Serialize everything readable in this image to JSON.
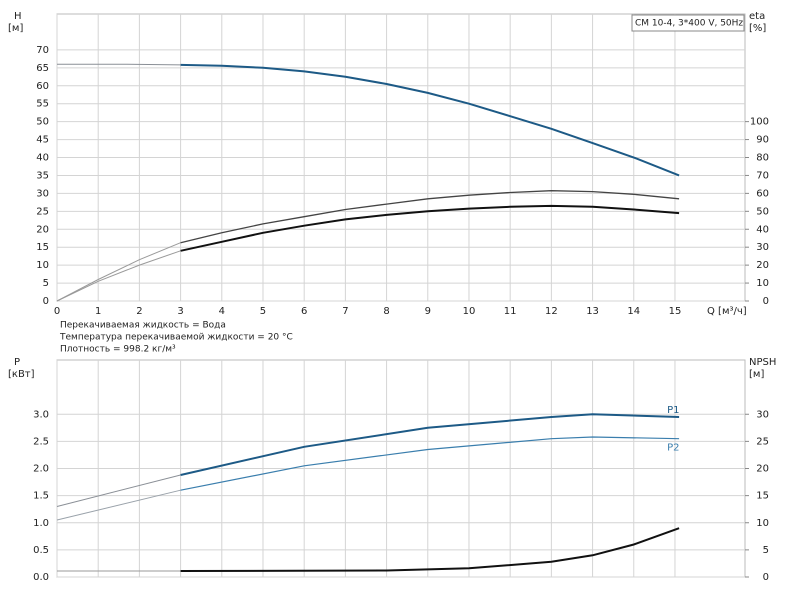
{
  "chart_data": [
    {
      "type": "line",
      "ylabel": "H",
      "yunit": "[м]",
      "y2label": "eta",
      "y2unit": "[%]",
      "xlabel": "Q [м³/ч]",
      "annotation": "CM 10-4, 3*400 V, 50Hz",
      "notes": [
        "Перекачиваемая жидкость = Вода",
        "Температура перекачиваемой жидкости = 20 °C",
        "Плотность = 998.2 кг/м³"
      ],
      "xlim": [
        0,
        16.7
      ],
      "xticks": [
        0,
        1,
        2,
        3,
        4,
        5,
        6,
        7,
        8,
        9,
        10,
        11,
        12,
        13,
        14,
        15
      ],
      "ylim": [
        0,
        80
      ],
      "yticks": [
        0,
        5,
        10,
        15,
        20,
        25,
        30,
        35,
        40,
        45,
        50,
        55,
        60,
        65,
        70
      ],
      "y2lim": [
        0,
        160
      ],
      "y2ticks": [
        0,
        10,
        20,
        30,
        40,
        50,
        60,
        70,
        80,
        90,
        100
      ],
      "grid": true,
      "series": [
        {
          "color": "#8a8f96",
          "width": 1,
          "x": [
            0,
            1.5,
            3
          ],
          "values": [
            66,
            66,
            65.8
          ]
        },
        {
          "color": "#1d5a86",
          "width": 2,
          "x": [
            3,
            4,
            5,
            6,
            7,
            8,
            9,
            10,
            11,
            12,
            13,
            14,
            15.1
          ],
          "values": [
            65.8,
            65.6,
            65,
            64,
            62.5,
            60.5,
            58,
            55,
            51.5,
            48,
            44,
            40,
            35
          ]
        },
        {
          "color": "#9a9a9a",
          "width": 1,
          "axis": "y2",
          "x": [
            0,
            1,
            2,
            3
          ],
          "values": [
            0,
            12,
            23,
            32.5
          ]
        },
        {
          "color": "#444444",
          "width": 1.3,
          "axis": "y2",
          "x": [
            3,
            4,
            5,
            6,
            7,
            8,
            9,
            10,
            11,
            12,
            13,
            14,
            15.1
          ],
          "values": [
            32.5,
            38,
            43,
            47,
            51,
            54,
            57,
            59,
            60.5,
            61.5,
            61,
            59.5,
            57
          ]
        },
        {
          "color": "#9a9a9a",
          "width": 1,
          "axis": "y2",
          "x": [
            0,
            1,
            2,
            3
          ],
          "values": [
            0,
            11,
            20,
            28
          ]
        },
        {
          "color": "#111111",
          "width": 2,
          "axis": "y2",
          "x": [
            3,
            4,
            5,
            6,
            7,
            8,
            9,
            10,
            11,
            12,
            13,
            14,
            15.1
          ],
          "values": [
            28,
            33,
            38,
            42,
            45.5,
            48,
            50,
            51.5,
            52.5,
            53,
            52.5,
            51,
            49
          ]
        }
      ]
    },
    {
      "type": "line",
      "ylabel": "P",
      "yunit": "[кВт]",
      "y2label": "NPSH",
      "y2unit": "[м]",
      "xlim": [
        0,
        16.7
      ],
      "xticks": [
        0,
        1,
        2,
        3,
        4,
        5,
        6,
        7,
        8,
        9,
        10,
        11,
        12,
        13,
        14,
        15
      ],
      "ylim": [
        0,
        4
      ],
      "yticks": [
        {
          "value": 0,
          "label": "0.0"
        },
        0.5,
        {
          "value": 1,
          "label": "1.0"
        },
        1.5,
        {
          "value": 2,
          "label": "2.0"
        },
        2.5,
        {
          "value": 3,
          "label": "3.0"
        }
      ],
      "y2lim": [
        0,
        40
      ],
      "y2ticks": [
        0,
        5,
        10,
        15,
        20,
        25,
        30
      ],
      "grid": true,
      "series": [
        {
          "color": "#8a8f96",
          "width": 1,
          "x": [
            0,
            3
          ],
          "values": [
            1.3,
            1.88
          ]
        },
        {
          "name": "P1",
          "color": "#1d5a86",
          "width": 2,
          "x": [
            3,
            6,
            9,
            12,
            13,
            15.1
          ],
          "values": [
            1.88,
            2.4,
            2.75,
            2.95,
            3.0,
            2.95
          ]
        },
        {
          "color": "#9aa2aa",
          "width": 1,
          "x": [
            0,
            3
          ],
          "values": [
            1.05,
            1.6
          ]
        },
        {
          "name": "P2",
          "color": "#3a7ead",
          "width": 1.2,
          "x": [
            3,
            6,
            9,
            12,
            13,
            15.1
          ],
          "values": [
            1.6,
            2.05,
            2.35,
            2.55,
            2.58,
            2.55
          ]
        },
        {
          "color": "#9a9a9a",
          "width": 1,
          "axis": "y2",
          "x": [
            0,
            3
          ],
          "values": [
            1.1,
            1.1
          ]
        },
        {
          "color": "#111111",
          "width": 2,
          "axis": "y2",
          "x": [
            3,
            8,
            10,
            12,
            13,
            14,
            15.1
          ],
          "values": [
            1.1,
            1.2,
            1.6,
            2.8,
            4,
            6,
            9
          ]
        }
      ]
    }
  ]
}
